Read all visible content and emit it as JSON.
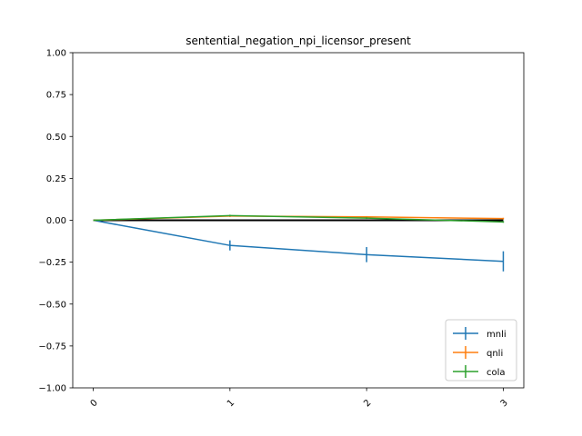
{
  "chart_data": {
    "type": "line",
    "title": "sentential_negation_npi_licensor_present",
    "xlabel": "",
    "ylabel": "",
    "x": [
      0,
      1,
      2,
      3
    ],
    "x_tick_labels": [
      "0",
      "1",
      "2",
      "3"
    ],
    "y_ticks": [
      1.0,
      0.75,
      0.5,
      0.25,
      0.0,
      -0.25,
      -0.5,
      -0.75,
      -1.0
    ],
    "y_tick_labels": [
      "1.00",
      "0.75",
      "0.50",
      "0.25",
      "0.00",
      "−0.25",
      "−0.50",
      "−0.75",
      "−1.00"
    ],
    "xlim": [
      -0.15,
      3.15
    ],
    "ylim": [
      -1.0,
      1.0
    ],
    "grid": false,
    "legend_position": "bottom-right",
    "reference_line": {
      "y": 0,
      "color": "#000000"
    },
    "series": [
      {
        "name": "mnli",
        "color": "#1f77b4",
        "values": [
          0.0,
          -0.15,
          -0.205,
          -0.245
        ],
        "errors": [
          0.0,
          0.03,
          0.045,
          0.06
        ]
      },
      {
        "name": "qnli",
        "color": "#ff7f0e",
        "values": [
          0.0,
          0.025,
          0.02,
          0.01
        ],
        "errors": [
          0.0,
          0.005,
          0.005,
          0.005
        ]
      },
      {
        "name": "cola",
        "color": "#2ca02c",
        "values": [
          0.0,
          0.028,
          0.013,
          -0.01
        ],
        "errors": [
          0.0,
          0.005,
          0.005,
          0.005
        ]
      }
    ]
  }
}
